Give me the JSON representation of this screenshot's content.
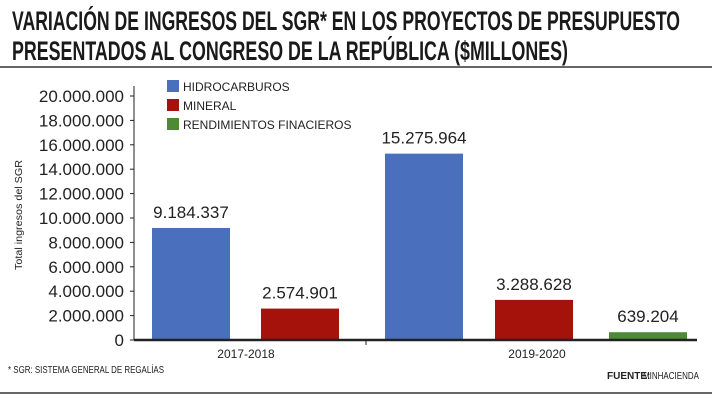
{
  "chart_data": {
    "type": "bar",
    "title": [
      "VARIACIÓN DE INGRESOS DEL SGR* EN LOS PROYECTOS DE PRESUPUESTO",
      "PRESENTADOS AL CONGRESO DE LA REPÚBLICA ($MILLONES)"
    ],
    "ylabel": "Total ingresos del SGR",
    "xlabel": "",
    "ylim": [
      0,
      20000000
    ],
    "yticks": [
      0,
      2000000,
      4000000,
      6000000,
      8000000,
      10000000,
      12000000,
      14000000,
      16000000,
      18000000,
      20000000
    ],
    "ytick_labels": [
      "0",
      "2.000.000",
      "4.000.000",
      "6.000.000",
      "8.000.000",
      "10.000.000",
      "12.000.000",
      "14.000.000",
      "16.000.000",
      "18.000.000",
      "20.000.000"
    ],
    "categories": [
      "2017-2018",
      "2019-2020"
    ],
    "series": [
      {
        "name": "HIDROCARBUROS",
        "color": "#4a6fbd",
        "values": [
          9184337,
          15275964
        ],
        "labels": [
          "9.184.337",
          "15.275.964"
        ]
      },
      {
        "name": "MINERAL",
        "color": "#a5120c",
        "values": [
          2574901,
          3288628
        ],
        "labels": [
          "2.574.901",
          "3.288.628"
        ]
      },
      {
        "name": "RENDIMIENTOS FINACIEROS",
        "color": "#4e8a35",
        "values": [
          null,
          639204
        ],
        "labels": [
          null,
          "639.204"
        ]
      }
    ],
    "legend": "top-left",
    "grid": false
  },
  "footnote": "* SGR: SISTEMA GENERAL DE REGALÍAS",
  "source_label": "FUENTE:",
  "source": "MINHACIENDA"
}
